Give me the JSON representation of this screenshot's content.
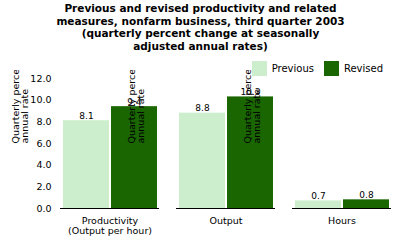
{
  "chart_data": {
    "type": "bar",
    "title": "Previous and revised productivity and related\nmeasures, nonfarm business, third quarter 2003\n(quarterly percent change at seasonally\nadjusted annual rates)",
    "categories": [
      "Productivity\n(Output per hour)",
      "Output",
      "Hours"
    ],
    "series": [
      {
        "name": "Previous",
        "color": "#cceecc",
        "values": [
          8.1,
          8.8,
          0.7
        ]
      },
      {
        "name": "Revised",
        "color": "#1a6600",
        "values": [
          9.4,
          10.3,
          0.8
        ]
      }
    ],
    "y_label": "Quarterly percent change at\nannual rate",
    "ylim": [
      0,
      12.0
    ],
    "yticks": [
      {
        "value": 0.0,
        "label": "0.0"
      },
      {
        "value": 2.0,
        "label": "2.0"
      },
      {
        "value": 4.0,
        "label": "4.0"
      },
      {
        "value": 6.0,
        "label": "6.0"
      },
      {
        "value": 8.0,
        "label": "8.0"
      },
      {
        "value": 10.0,
        "label": "10.0"
      },
      {
        "value": 12.0,
        "label": "12.0"
      }
    ],
    "data_labels": true,
    "legend": "upper right",
    "grid": false
  }
}
